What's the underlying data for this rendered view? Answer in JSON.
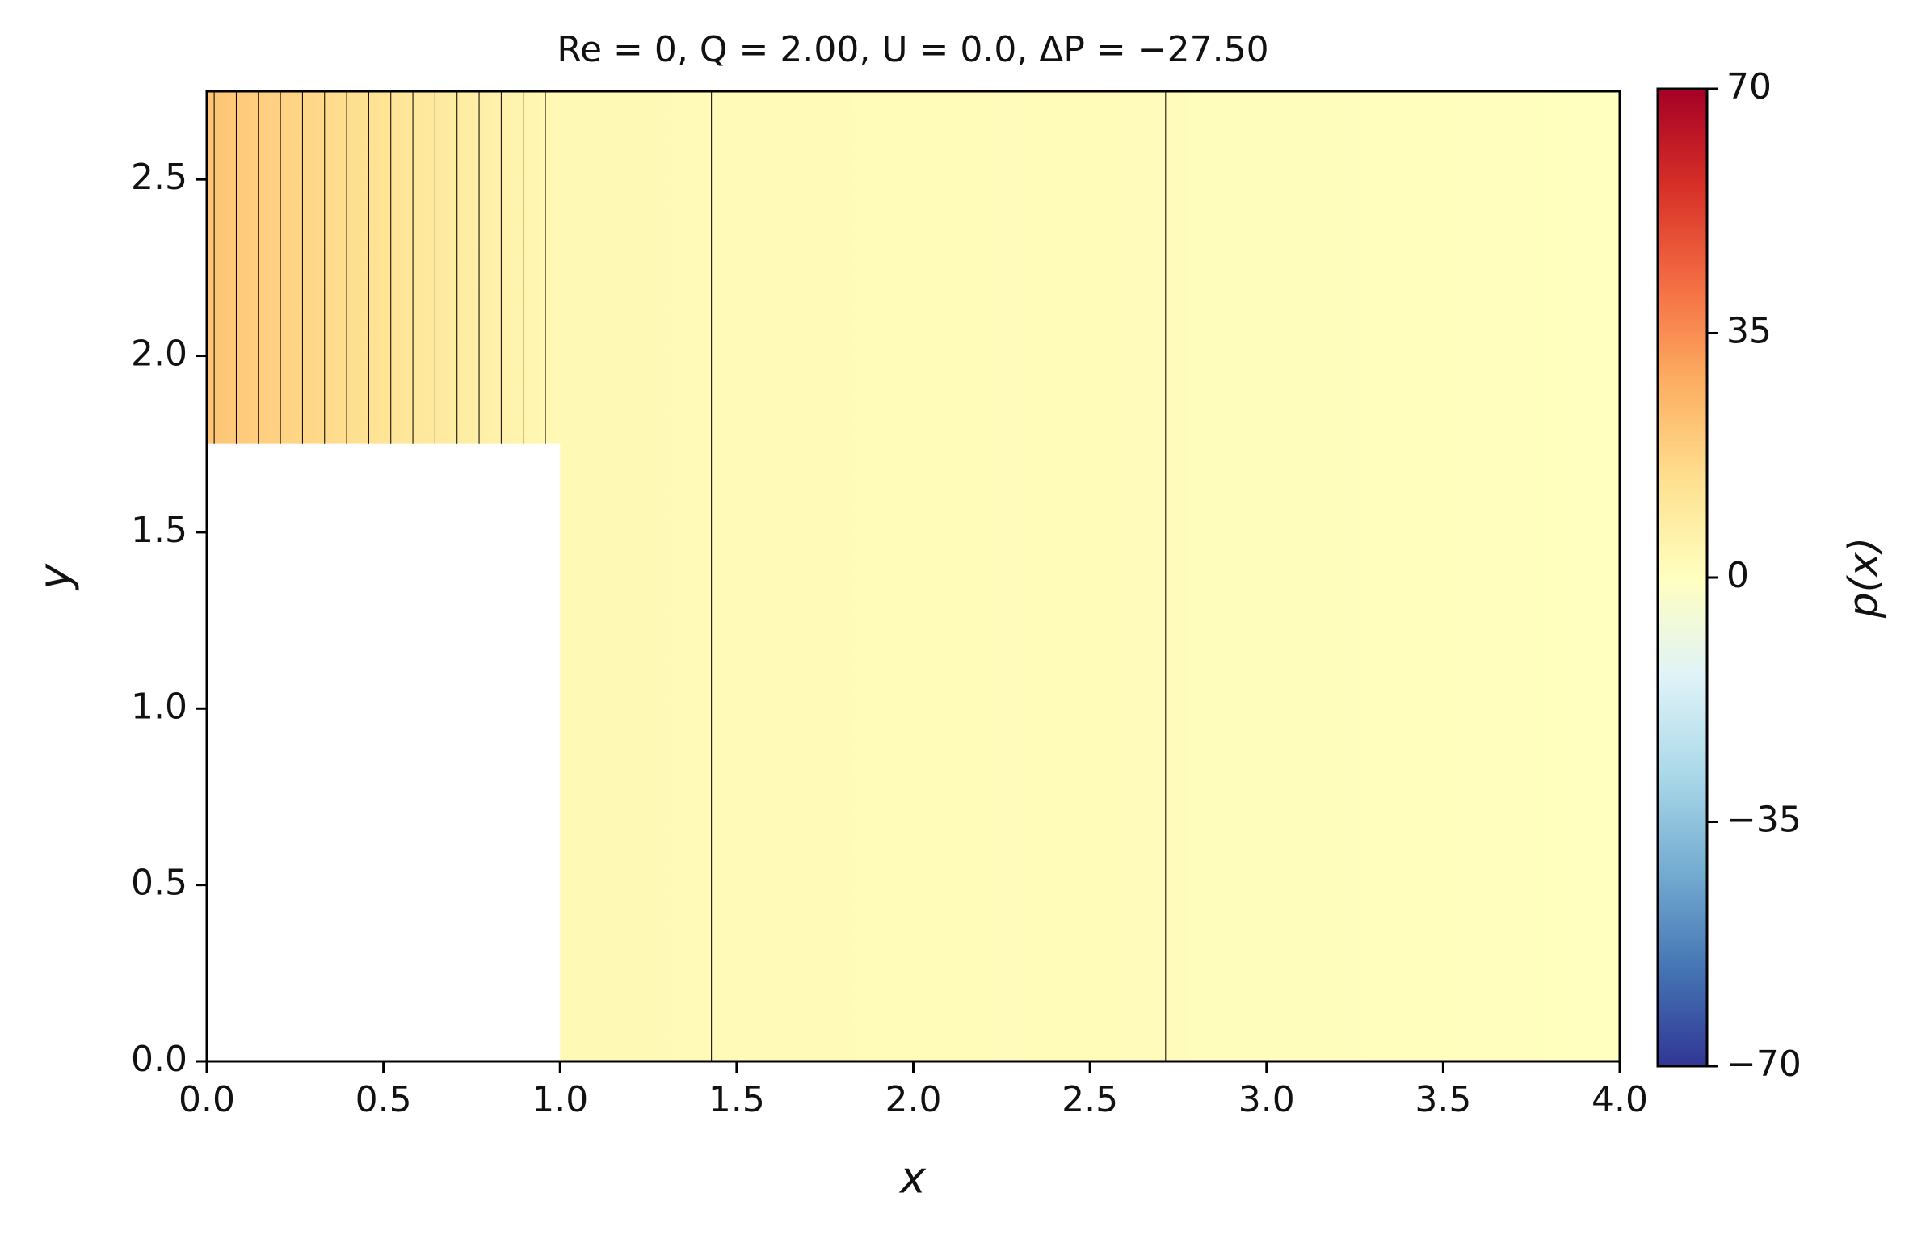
{
  "chart_data": {
    "type": "contour",
    "title": "Re = 0, Q = 2.00, U = 0.0, ΔP = −27.50",
    "x_label": "x",
    "y_label": "y",
    "colorbar_label": "p(x)",
    "x": [
      0,
      1,
      4
    ],
    "values": [
      22,
      2.8,
      0
    ],
    "levels": [
      1.2,
      2.4,
      3.6,
      4.8,
      6.0,
      7.2,
      8.4,
      9.6,
      10.8,
      12.0,
      13.2,
      14.4,
      15.6,
      16.8,
      18.0,
      19.2,
      20.4,
      21.6
    ],
    "obstacle": {
      "xlim": [
        0,
        1
      ],
      "ylim": [
        0,
        1.75
      ]
    },
    "xlim": [
      0,
      4
    ],
    "xticks": [
      {
        "value": 0,
        "label": "0.0"
      },
      {
        "value": 0.5,
        "label": "0.5"
      },
      {
        "value": 1,
        "label": "1.0"
      },
      {
        "value": 1.5,
        "label": "1.5"
      },
      {
        "value": 2,
        "label": "2.0"
      },
      {
        "value": 2.5,
        "label": "2.5"
      },
      {
        "value": 3,
        "label": "3.0"
      },
      {
        "value": 3.5,
        "label": "3.5"
      },
      {
        "value": 4,
        "label": "4.0"
      }
    ],
    "ylim": [
      0,
      2.75
    ],
    "yticks": [
      {
        "value": 0,
        "label": "0.0"
      },
      {
        "value": 0.5,
        "label": "0.5"
      },
      {
        "value": 1,
        "label": "1.0"
      },
      {
        "value": 1.5,
        "label": "1.5"
      },
      {
        "value": 2,
        "label": "2.0"
      },
      {
        "value": 2.5,
        "label": "2.5"
      }
    ],
    "clim": [
      -70,
      70
    ],
    "cticks": [
      {
        "value": -70,
        "label": "−70"
      },
      {
        "value": -35,
        "label": "−35"
      },
      0,
      35,
      70
    ],
    "colormap": [
      "#313695",
      "#4575b4",
      "#74add1",
      "#abd9e9",
      "#e0f3f8",
      "#ffffbf",
      "#fee090",
      "#fdae61",
      "#f46d43",
      "#d73027",
      "#a50026"
    ],
    "contour_color": "#000000"
  }
}
